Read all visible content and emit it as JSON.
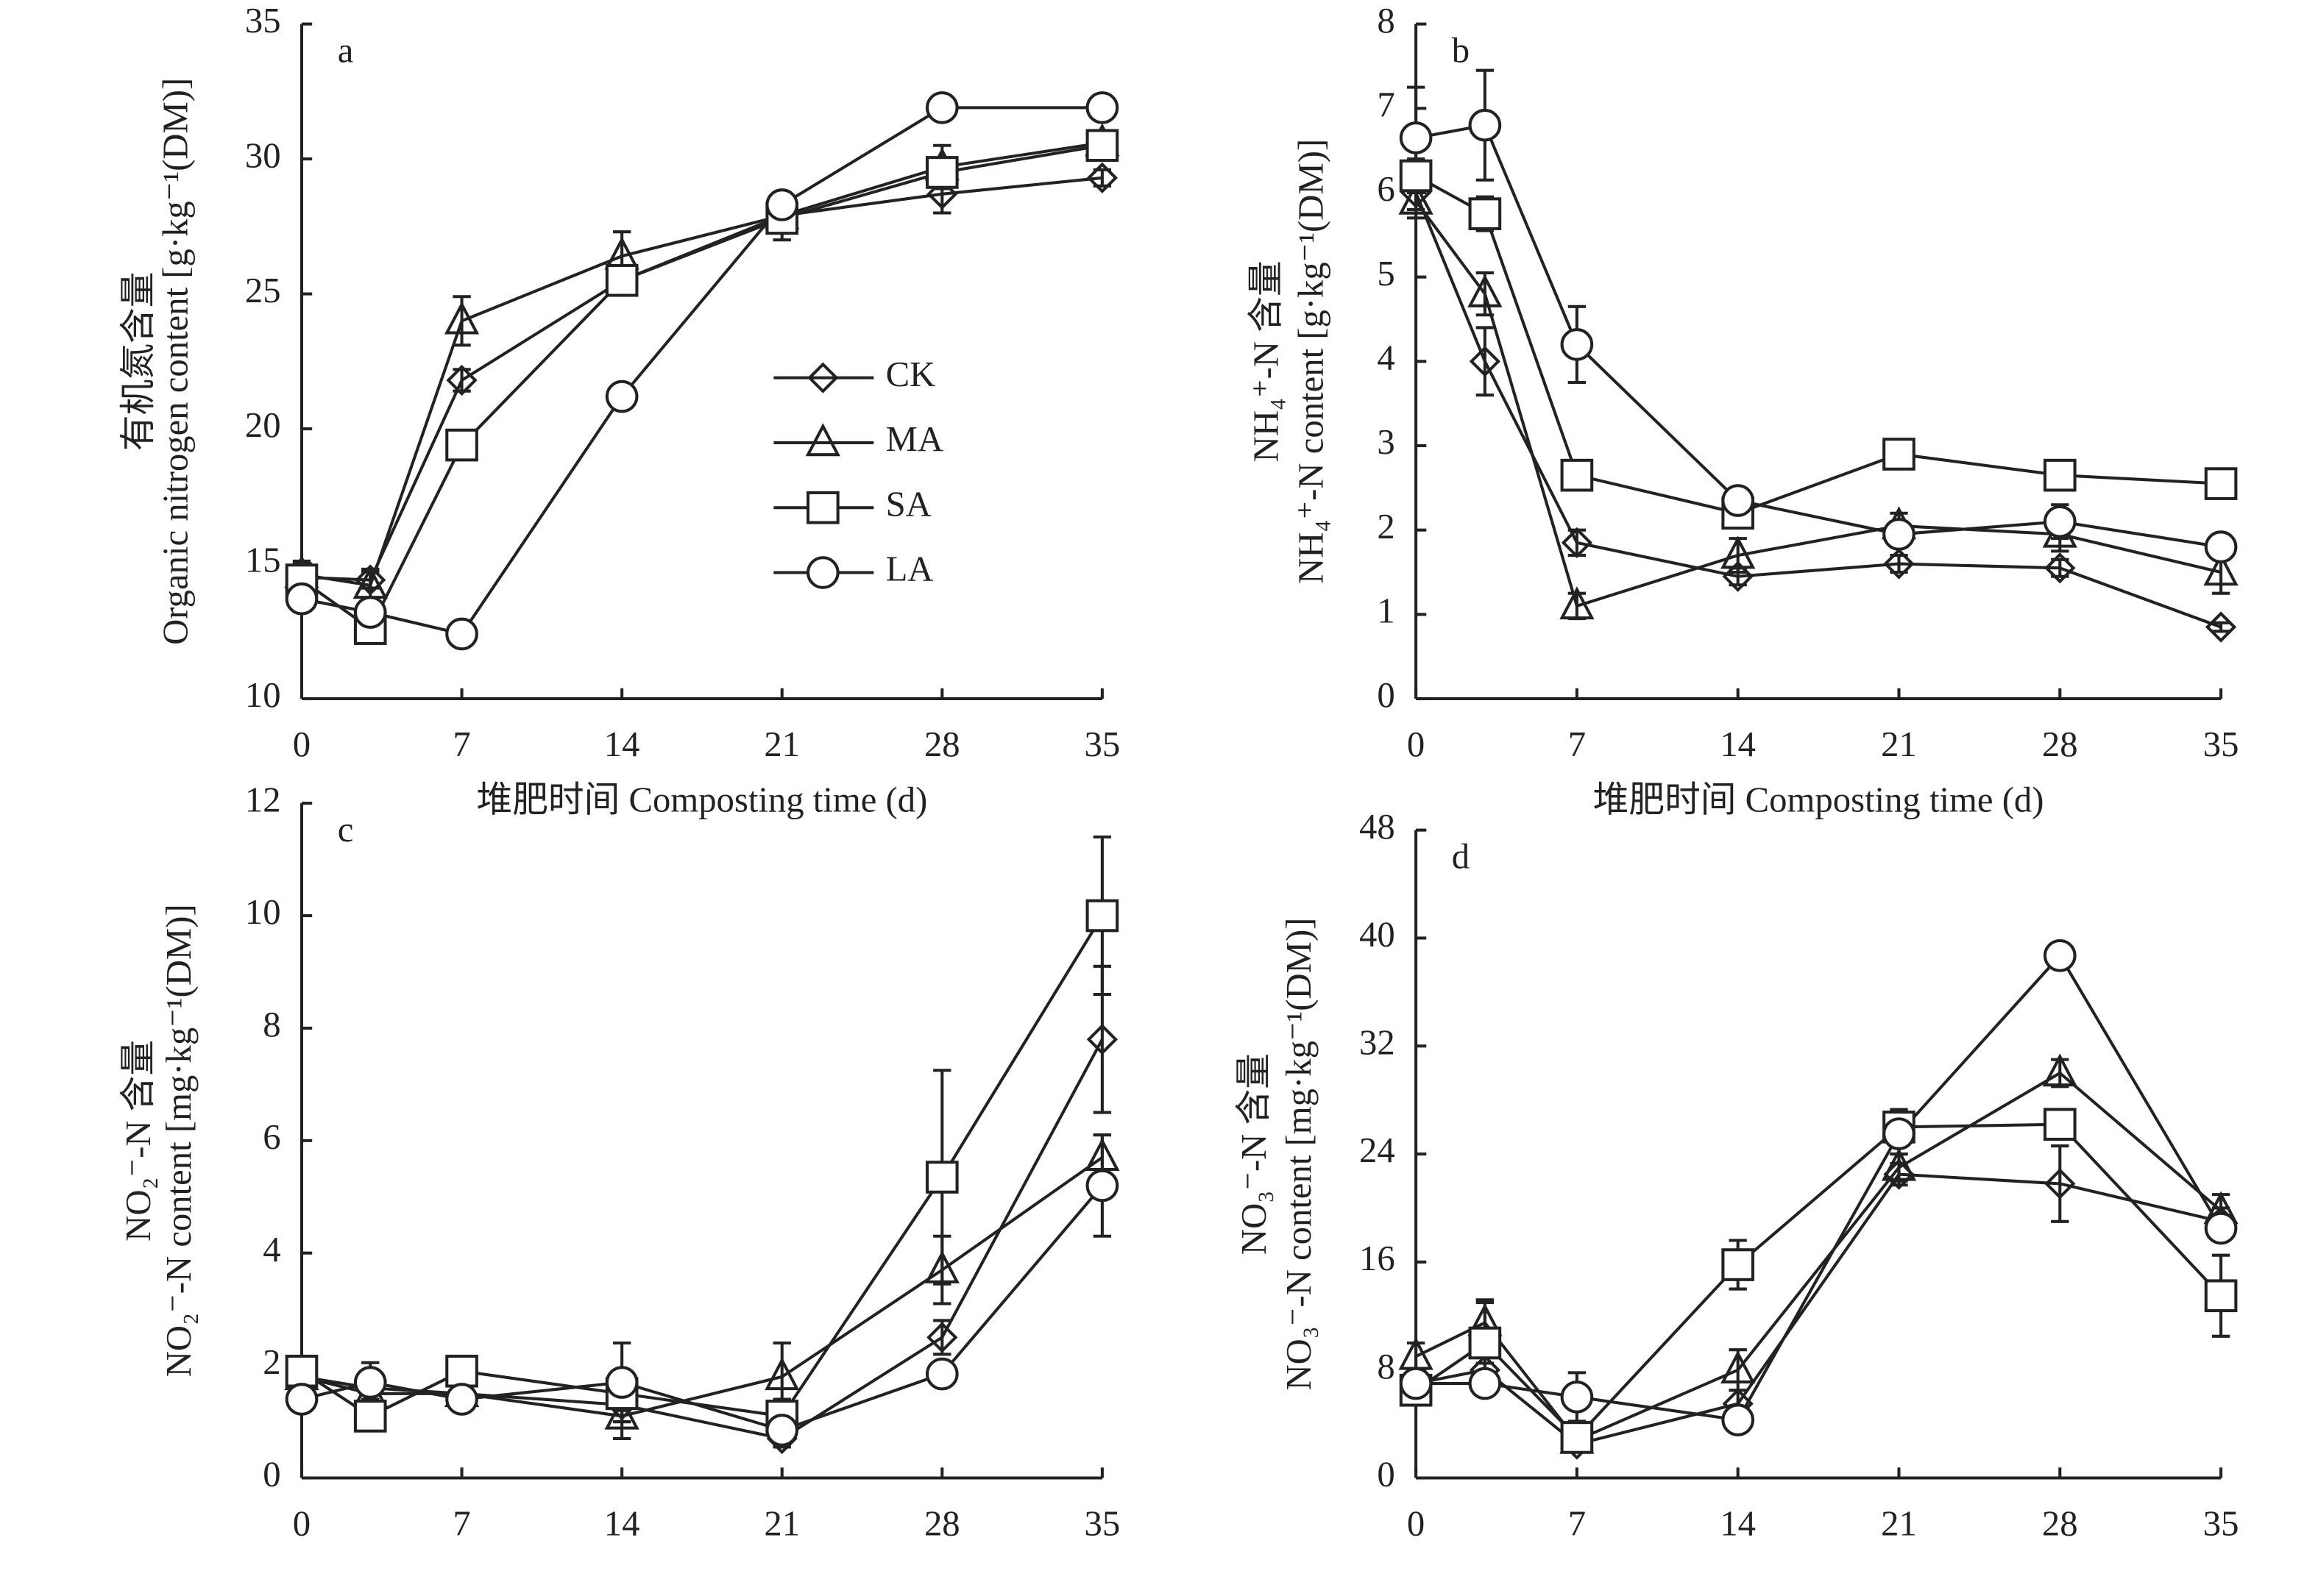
{
  "chart_data": [
    {
      "type": "line",
      "label": "a",
      "ylabel_cn": "有机氮含量",
      "ylabel_en": "Organic nitrogen content [g·kg⁻¹(DM)]",
      "xlabel": "堆肥时间 Composting time (d)",
      "x": [
        0,
        3,
        7,
        14,
        21,
        28,
        35
      ],
      "xlim": [
        0,
        35
      ],
      "xticks": [
        0,
        7,
        14,
        21,
        28,
        35
      ],
      "ylim": [
        10,
        35
      ],
      "yticks": [
        10,
        15,
        20,
        25,
        30,
        35
      ],
      "series": [
        {
          "name": "CK",
          "marker": "diamond",
          "values": [
            14.5,
            14.4,
            21.8,
            25.5,
            27.9,
            28.7,
            29.3
          ],
          "errors": [
            0.5,
            0.3,
            0.4,
            0.3,
            0.3,
            0.7,
            0.3
          ]
        },
        {
          "name": "MA",
          "marker": "triangle",
          "values": [
            14.6,
            14.2,
            24.0,
            26.4,
            27.9,
            29.7,
            30.6
          ],
          "errors": [
            0.5,
            0.6,
            0.9,
            0.9,
            0.3,
            0.8,
            0.3
          ]
        },
        {
          "name": "SA",
          "marker": "square",
          "values": [
            14.4,
            12.6,
            19.4,
            25.5,
            27.8,
            29.5,
            30.5
          ],
          "errors": [
            0.4,
            0.3,
            0.4,
            0.4,
            0.8,
            0.4,
            0.3
          ]
        },
        {
          "name": "LA",
          "marker": "circle",
          "values": [
            13.7,
            13.2,
            12.4,
            21.2,
            28.3,
            31.9,
            31.9
          ],
          "errors": [
            0.3,
            0.3,
            0.4,
            0.3,
            0.3,
            0.3,
            0.3
          ]
        }
      ]
    },
    {
      "type": "line",
      "label": "b",
      "ylabel_cn": "NH₄⁺-N 含量",
      "ylabel_en": "NH₄⁺-N content [g·kg⁻¹(DM)]",
      "xlabel": "堆肥时间  Composting time (d)",
      "x": [
        0,
        3,
        7,
        14,
        21,
        28,
        35
      ],
      "xlim": [
        0,
        35
      ],
      "xticks": [
        0,
        7,
        14,
        21,
        28,
        35
      ],
      "ylim": [
        0,
        8
      ],
      "yticks": [
        0,
        1,
        2,
        3,
        4,
        5,
        6,
        7,
        8
      ],
      "series": [
        {
          "marker": "diamond",
          "values": [
            6.0,
            4.0,
            1.85,
            1.45,
            1.6,
            1.55,
            0.85
          ],
          "errors": [
            0.2,
            0.4,
            0.15,
            0.1,
            0.1,
            0.1,
            0.05
          ]
        },
        {
          "marker": "triangle",
          "values": [
            5.9,
            4.8,
            1.1,
            1.7,
            2.05,
            1.95,
            1.5
          ],
          "errors": [
            0.2,
            0.25,
            0.15,
            0.2,
            0.15,
            0.2,
            0.25
          ]
        },
        {
          "marker": "square",
          "values": [
            6.2,
            5.75,
            2.65,
            2.2,
            2.9,
            2.65,
            2.55
          ],
          "errors": [
            0.2,
            0.2,
            0.1,
            0.15,
            0.1,
            0.1,
            0.1
          ]
        },
        {
          "marker": "circle",
          "values": [
            6.65,
            6.8,
            4.2,
            2.35,
            1.95,
            2.1,
            1.8
          ],
          "errors": [
            0.6,
            0.65,
            0.45,
            0.1,
            0.15,
            0.2,
            0.1
          ]
        }
      ]
    },
    {
      "type": "line",
      "label": "c",
      "ylabel_cn": "NO₂⁻-N 含量",
      "ylabel_en": "NO₂⁻-N content [mg·kg⁻¹(DM)]",
      "x": [
        0,
        3,
        7,
        14,
        21,
        28,
        35
      ],
      "xlim": [
        0,
        35
      ],
      "xticks": [
        0,
        7,
        14,
        21,
        28,
        35
      ],
      "ylim": [
        0,
        12
      ],
      "yticks": [
        0,
        2,
        4,
        6,
        8,
        10,
        12
      ],
      "series": [
        {
          "marker": "diamond",
          "values": [
            1.8,
            1.6,
            1.5,
            1.3,
            0.7,
            2.5,
            7.8
          ],
          "errors": [
            0.2,
            0.2,
            0.2,
            0.3,
            0.15,
            0.3,
            1.3
          ]
        },
        {
          "marker": "triangle",
          "values": [
            1.8,
            1.5,
            1.5,
            1.1,
            1.8,
            3.7,
            5.7
          ],
          "errors": [
            0.2,
            0.2,
            0.2,
            0.4,
            0.6,
            0.6,
            0.4
          ]
        },
        {
          "marker": "square",
          "values": [
            1.9,
            1.1,
            1.9,
            1.5,
            1.1,
            5.35,
            10.0
          ],
          "errors": [
            0.2,
            0.2,
            0.15,
            0.3,
            0.3,
            1.9,
            1.4
          ]
        },
        {
          "marker": "circle",
          "values": [
            1.4,
            1.7,
            1.4,
            1.7,
            0.85,
            1.85,
            5.2
          ],
          "errors": [
            0.2,
            0.35,
            0.15,
            0.7,
            0.2,
            0.15,
            0.9
          ]
        }
      ]
    },
    {
      "type": "line",
      "label": "d",
      "ylabel_cn": "NO₃⁻-N 含量",
      "ylabel_en": "NO₃⁻-N content [mg·kg⁻¹(DM)]",
      "x": [
        0,
        3,
        7,
        14,
        21,
        28,
        35
      ],
      "xlim": [
        0,
        35
      ],
      "xticks": [
        0,
        7,
        14,
        21,
        28,
        35
      ],
      "ylim": [
        0,
        48
      ],
      "yticks": [
        0,
        8,
        16,
        24,
        32,
        40,
        48
      ],
      "series": [
        {
          "marker": "diamond",
          "values": [
            7,
            8,
            2.5,
            5.5,
            22.5,
            21.8,
            19
          ],
          "errors": [
            0.5,
            0.5,
            0.5,
            1,
            0.8,
            2.8,
            1
          ]
        },
        {
          "marker": "triangle",
          "values": [
            9,
            11.5,
            2.8,
            8,
            23,
            30,
            19.8
          ],
          "errors": [
            1,
            1.5,
            0.5,
            1.5,
            1,
            1,
            1.2
          ]
        },
        {
          "marker": "square",
          "values": [
            6.5,
            10,
            3,
            15.8,
            26,
            26.2,
            13.5
          ],
          "errors": [
            1,
            3.2,
            0.5,
            1.8,
            1.3,
            1,
            3
          ]
        },
        {
          "marker": "circle",
          "values": [
            7,
            7,
            6,
            4.3,
            25.5,
            38.7,
            18.5
          ],
          "errors": [
            0.5,
            0.5,
            1.8,
            0.5,
            1.5,
            0.5,
            0.5
          ]
        }
      ]
    }
  ]
}
